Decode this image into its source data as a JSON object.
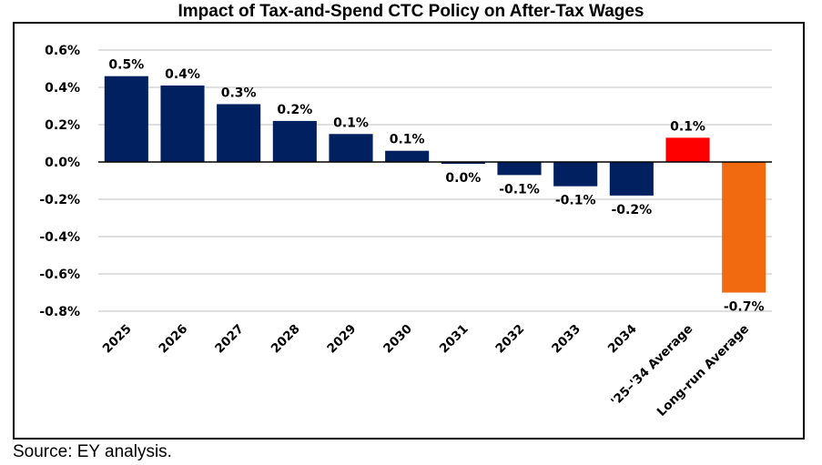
{
  "chart_data": {
    "type": "bar",
    "title": "Impact of Tax-and-Spend CTC Policy on After-Tax Wages",
    "xlabel": "",
    "ylabel": "",
    "ylim": [
      -0.8,
      0.6
    ],
    "yticks": [
      0.6,
      0.4,
      0.2,
      0.0,
      -0.2,
      -0.4,
      -0.6,
      -0.8
    ],
    "ytick_labels": [
      "0.6%",
      "0.4%",
      "0.2%",
      "0.0%",
      "-0.2%",
      "-0.4%",
      "-0.6%",
      "-0.8%"
    ],
    "grid": true,
    "legend": "none",
    "categories": [
      "2025",
      "2026",
      "2027",
      "2028",
      "2029",
      "2030",
      "2031",
      "2032",
      "2033",
      "2034",
      "'25–'34 Average",
      "Long-run Average"
    ],
    "values": [
      0.46,
      0.41,
      0.31,
      0.22,
      0.15,
      0.06,
      -0.01,
      -0.07,
      -0.13,
      -0.18,
      0.13,
      -0.7
    ],
    "data_labels": [
      "0.5%",
      "0.4%",
      "0.3%",
      "0.2%",
      "0.1%",
      "0.1%",
      "0.0%",
      "-0.1%",
      "-0.1%",
      "-0.2%",
      "0.1%",
      "-0.7%"
    ],
    "colors": [
      "#002060",
      "#002060",
      "#002060",
      "#002060",
      "#002060",
      "#002060",
      "#002060",
      "#002060",
      "#002060",
      "#002060",
      "#ff0000",
      "#f26a0f"
    ]
  },
  "source": "Source: EY analysis."
}
